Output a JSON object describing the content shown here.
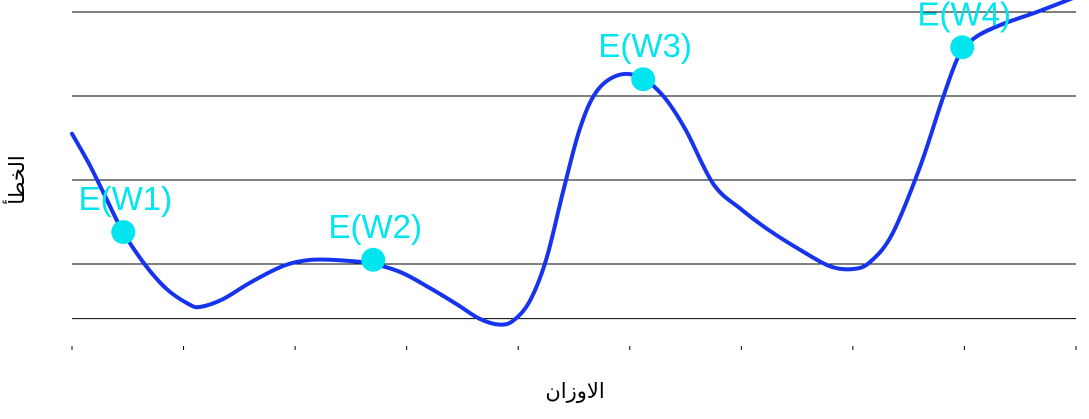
{
  "chart_data": {
    "type": "line",
    "title": "",
    "xlabel": "الاوزان",
    "ylabel": "الخطأ",
    "xlim": [
      0,
      9
    ],
    "ylim": [
      0,
      4
    ],
    "grid": true,
    "x_ticks": [
      0,
      1,
      2,
      3,
      4,
      5,
      6,
      7,
      8,
      9
    ],
    "gridlines_y": [
      0.35,
      1.0,
      2.0,
      3.0,
      4.0
    ],
    "series": [
      {
        "color": "#1634ee",
        "points": [
          [
            0.0,
            2.55
          ],
          [
            0.15,
            2.2
          ],
          [
            0.3,
            1.8
          ],
          [
            0.45,
            1.4
          ],
          [
            0.65,
            1.0
          ],
          [
            0.85,
            0.7
          ],
          [
            1.05,
            0.52
          ],
          [
            1.15,
            0.49
          ],
          [
            1.35,
            0.58
          ],
          [
            1.6,
            0.78
          ],
          [
            1.9,
            0.98
          ],
          [
            2.15,
            1.05
          ],
          [
            2.45,
            1.04
          ],
          [
            2.7,
            1.0
          ],
          [
            2.95,
            0.9
          ],
          [
            3.2,
            0.72
          ],
          [
            3.45,
            0.52
          ],
          [
            3.65,
            0.35
          ],
          [
            3.82,
            0.28
          ],
          [
            3.95,
            0.32
          ],
          [
            4.1,
            0.55
          ],
          [
            4.25,
            1.05
          ],
          [
            4.4,
            1.85
          ],
          [
            4.55,
            2.6
          ],
          [
            4.7,
            3.05
          ],
          [
            4.9,
            3.25
          ],
          [
            5.1,
            3.22
          ],
          [
            5.3,
            3.0
          ],
          [
            5.5,
            2.6
          ],
          [
            5.75,
            1.95
          ],
          [
            6.0,
            1.65
          ],
          [
            6.25,
            1.4
          ],
          [
            6.55,
            1.15
          ],
          [
            6.8,
            0.97
          ],
          [
            7.0,
            0.94
          ],
          [
            7.15,
            1.02
          ],
          [
            7.35,
            1.35
          ],
          [
            7.6,
            2.15
          ],
          [
            7.8,
            2.95
          ],
          [
            7.95,
            3.48
          ],
          [
            8.1,
            3.7
          ],
          [
            8.35,
            3.86
          ],
          [
            8.65,
            4.0
          ],
          [
            9.0,
            4.18
          ]
        ]
      }
    ],
    "markers": [
      {
        "label": "E(W1)",
        "x": 0.46,
        "y": 1.38
      },
      {
        "label": "E(W2)",
        "x": 2.7,
        "y": 1.05
      },
      {
        "label": "E(W3)",
        "x": 5.12,
        "y": 3.2
      },
      {
        "label": "E(W4)",
        "x": 7.98,
        "y": 3.58
      }
    ],
    "marker_color": "#00e5ee"
  }
}
